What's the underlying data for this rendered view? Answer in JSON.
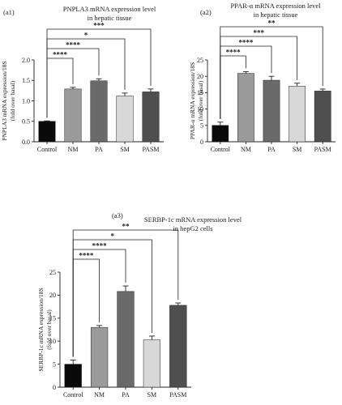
{
  "chart_data": [
    {
      "type": "bar",
      "panel_label": "(a1)",
      "title_lines": [
        "PNPLA3 mRNA expression level",
        "in hepatic tissue"
      ],
      "ylabel_lines": [
        "PNPLA3 mRNA expression/18S",
        "(fold over basal)"
      ],
      "categories": [
        "Control",
        "NM",
        "PA",
        "SM",
        "PASM"
      ],
      "values": [
        0.5,
        1.29,
        1.49,
        1.12,
        1.22
      ],
      "errors": [
        0.01,
        0.04,
        0.05,
        0.07,
        0.07
      ],
      "colors": [
        "#0a0a0a",
        "#9a9a9a",
        "#6a6a6a",
        "#d8d8d8",
        "#4f4f4f"
      ],
      "ylim": [
        0,
        2.0
      ],
      "yticks": [
        "0.0",
        "0.5",
        "1.0",
        "1.5",
        "2.0"
      ],
      "ytick_values": [
        0,
        0.5,
        1.0,
        1.5,
        2.0
      ],
      "significance": [
        {
          "from": "Control",
          "to": "NM",
          "label": "****"
        },
        {
          "from": "Control",
          "to": "PA",
          "label": "****"
        },
        {
          "from": "Control",
          "to": "SM",
          "label": "*"
        },
        {
          "from": "Control",
          "to": "PASM",
          "label": "***"
        }
      ]
    },
    {
      "type": "bar",
      "panel_label": "(a2)",
      "title_lines": [
        "PPAR-α mRNA expression level",
        "in hepatic tissue"
      ],
      "ylabel_lines": [
        "PPAR-α mRNA expression/18S",
        "(fold over basal)"
      ],
      "categories": [
        "Control",
        "NM",
        "PA",
        "SM",
        "PASM"
      ],
      "values": [
        5.0,
        20.9,
        18.8,
        17.0,
        15.5
      ],
      "errors": [
        1.0,
        0.5,
        1.2,
        0.9,
        0.6
      ],
      "colors": [
        "#0a0a0a",
        "#9a9a9a",
        "#6a6a6a",
        "#d8d8d8",
        "#4f4f4f"
      ],
      "ylim": [
        0,
        25
      ],
      "yticks": [
        "0",
        "5",
        "10",
        "15",
        "20",
        "25"
      ],
      "ytick_values": [
        0,
        5,
        10,
        15,
        20,
        25
      ],
      "significance": [
        {
          "from": "Control",
          "to": "NM",
          "label": "****"
        },
        {
          "from": "Control",
          "to": "PA",
          "label": "****"
        },
        {
          "from": "Control",
          "to": "SM",
          "label": "***"
        },
        {
          "from": "Control",
          "to": "PASM",
          "label": "**"
        }
      ]
    },
    {
      "type": "bar",
      "panel_label": "(a3)",
      "title_lines": [
        "SERBP-1c mRNA expression level",
        "in hepG2 cells"
      ],
      "ylabel_lines": [
        "SERBP-1c mRNA expression/18S",
        "(fold over basal)"
      ],
      "categories": [
        "Control",
        "NM",
        "PA",
        "SM",
        "PASM"
      ],
      "values": [
        5.0,
        13.0,
        20.8,
        10.3,
        17.8
      ],
      "errors": [
        0.9,
        0.4,
        1.2,
        0.8,
        0.5
      ],
      "colors": [
        "#0a0a0a",
        "#9a9a9a",
        "#6a6a6a",
        "#d8d8d8",
        "#4f4f4f"
      ],
      "ylim": [
        0,
        25
      ],
      "yticks": [
        "0",
        "5",
        "10",
        "15",
        "20",
        "25"
      ],
      "ytick_values": [
        0,
        5,
        10,
        15,
        20,
        25
      ],
      "significance": [
        {
          "from": "Control",
          "to": "NM",
          "label": "****"
        },
        {
          "from": "Control",
          "to": "PA",
          "label": "****"
        },
        {
          "from": "Control",
          "to": "SM",
          "label": "*"
        },
        {
          "from": "Control",
          "to": "PASM",
          "label": "**"
        }
      ]
    }
  ]
}
